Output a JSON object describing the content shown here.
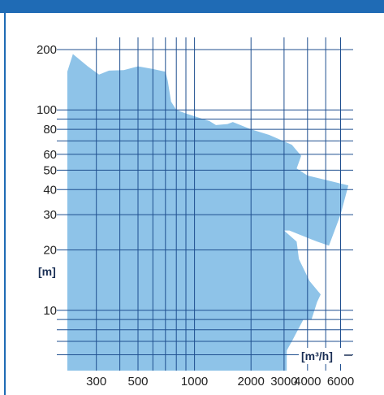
{
  "chart_data": {
    "type": "area",
    "title": "",
    "xlabel": "[m³/h]",
    "ylabel": "[m]",
    "x_scale": "log",
    "y_scale": "log",
    "xlim": [
      200,
      7000
    ],
    "ylim": [
      5,
      230
    ],
    "x_ticks": [
      300,
      500,
      1000,
      2000,
      3000,
      4000,
      6000
    ],
    "x_tick_labels": [
      "300",
      "500",
      "1000",
      "2000",
      "3000",
      "4000",
      "6000"
    ],
    "y_ticks": [
      10,
      20,
      30,
      40,
      50,
      60,
      80,
      100,
      200
    ],
    "y_tick_labels": [
      "10",
      "20",
      "30",
      "40",
      "50",
      "60",
      "80",
      "100",
      "200"
    ],
    "grid": true,
    "colors": {
      "area": "#8ec3e8",
      "grid": "#1f4f8f",
      "frame": "#1f6bb5"
    },
    "series": [
      {
        "points": [
          [
            210,
            155
          ],
          [
            225,
            190
          ],
          [
            270,
            165
          ],
          [
            310,
            150
          ],
          [
            350,
            157
          ],
          [
            420,
            158
          ],
          [
            500,
            165
          ],
          [
            600,
            160
          ],
          [
            700,
            155
          ],
          [
            720,
            140
          ],
          [
            750,
            110
          ],
          [
            800,
            100
          ],
          [
            900,
            96
          ],
          [
            1200,
            88
          ],
          [
            1300,
            84
          ],
          [
            1500,
            85
          ],
          [
            1600,
            87
          ],
          [
            2000,
            80
          ],
          [
            2500,
            75
          ],
          [
            3300,
            67
          ],
          [
            3700,
            59
          ],
          [
            3500,
            51
          ],
          [
            4000,
            47
          ],
          [
            6600,
            42
          ],
          [
            6000,
            30
          ],
          [
            5200,
            21
          ],
          [
            4500,
            22
          ],
          [
            3200,
            25
          ],
          [
            3000,
            25
          ],
          [
            3500,
            22
          ],
          [
            3600,
            18
          ],
          [
            4100,
            14
          ],
          [
            4700,
            12
          ],
          [
            4500,
            11
          ],
          [
            4200,
            9
          ],
          [
            3800,
            9
          ],
          [
            3300,
            7
          ],
          [
            3100,
            6.3
          ],
          [
            3100,
            5
          ],
          [
            210,
            5
          ]
        ]
      }
    ]
  }
}
